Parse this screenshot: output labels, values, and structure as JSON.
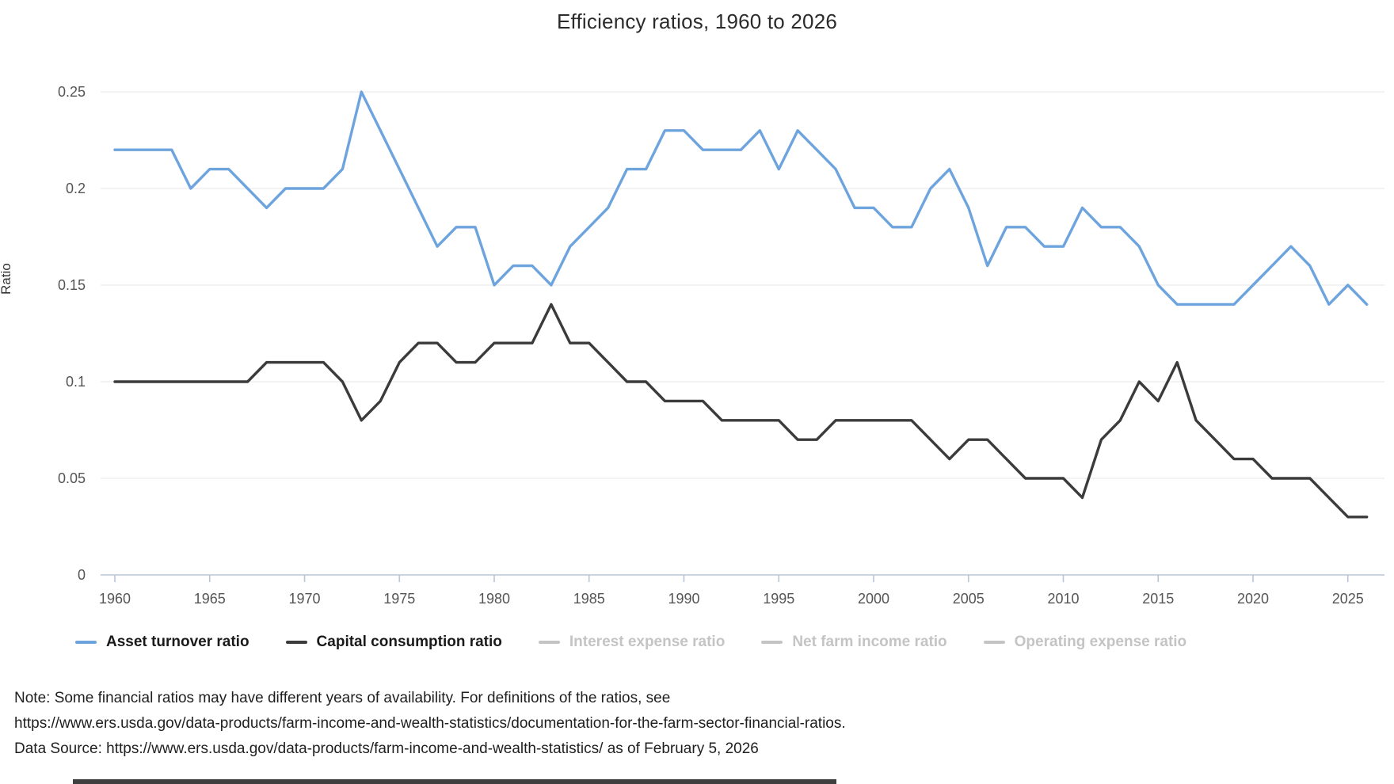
{
  "page": {
    "title": "Efficiency ratios, 1960 to 2026"
  },
  "chart_data": {
    "type": "line",
    "title": "Efficiency ratios, 1960 to 2026",
    "xlabel": "",
    "ylabel": "Ratio",
    "x_range": [
      1960,
      2026
    ],
    "x_step": 1,
    "x_ticks": [
      "1960",
      "1965",
      "1970",
      "1975",
      "1980",
      "1985",
      "1990",
      "1995",
      "2000",
      "2005",
      "2010",
      "2015",
      "2020",
      "2025"
    ],
    "y_ticks": [
      "0",
      "0.05",
      "0.1",
      "0.15",
      "0.2",
      "0.25"
    ],
    "y_tick_values": [
      0,
      0.05,
      0.1,
      0.15,
      0.2,
      0.25
    ],
    "ylim": [
      0,
      0.25
    ],
    "grid": "horizontal",
    "legend_position": "bottom",
    "series": [
      {
        "name": "Asset turnover ratio",
        "color": "#6ea4de",
        "enabled": true,
        "values": [
          0.22,
          0.22,
          0.22,
          0.22,
          0.2,
          0.21,
          0.21,
          0.2,
          0.19,
          0.2,
          0.2,
          0.2,
          0.21,
          0.25,
          0.23,
          0.21,
          0.19,
          0.17,
          0.18,
          0.18,
          0.15,
          0.16,
          0.16,
          0.15,
          0.17,
          0.18,
          0.19,
          0.21,
          0.21,
          0.23,
          0.23,
          0.22,
          0.22,
          0.22,
          0.23,
          0.21,
          0.23,
          0.22,
          0.21,
          0.19,
          0.19,
          0.18,
          0.18,
          0.2,
          0.21,
          0.19,
          0.16,
          0.18,
          0.18,
          0.17,
          0.17,
          0.19,
          0.18,
          0.18,
          0.17,
          0.15,
          0.14,
          0.14,
          0.14,
          0.14,
          0.15,
          0.16,
          0.17,
          0.16,
          0.14,
          0.15,
          0.14
        ]
      },
      {
        "name": "Capital consumption ratio",
        "color": "#3b3b3b",
        "enabled": true,
        "values": [
          0.1,
          0.1,
          0.1,
          0.1,
          0.1,
          0.1,
          0.1,
          0.1,
          0.11,
          0.11,
          0.11,
          0.11,
          0.1,
          0.08,
          0.09,
          0.11,
          0.12,
          0.12,
          0.11,
          0.11,
          0.12,
          0.12,
          0.12,
          0.14,
          0.12,
          0.12,
          0.11,
          0.1,
          0.1,
          0.09,
          0.09,
          0.09,
          0.08,
          0.08,
          0.08,
          0.08,
          0.07,
          0.07,
          0.08,
          0.08,
          0.08,
          0.08,
          0.08,
          0.07,
          0.06,
          0.07,
          0.07,
          0.06,
          0.05,
          0.05,
          0.05,
          0.04,
          0.07,
          0.08,
          0.1,
          0.09,
          0.11,
          0.08,
          0.07,
          0.06,
          0.06,
          0.05,
          0.05,
          0.05,
          0.04,
          0.03,
          0.03
        ]
      },
      {
        "name": "Interest expense ratio",
        "color": "#c4c4c4",
        "enabled": false,
        "values": []
      },
      {
        "name": "Net farm income ratio",
        "color": "#c4c4c4",
        "enabled": false,
        "values": []
      },
      {
        "name": "Operating expense ratio",
        "color": "#c4c4c4",
        "enabled": false,
        "values": []
      }
    ]
  },
  "notes": {
    "lines": [
      "Note: Some financial ratios may have different years of availability. For definitions of the ratios, see",
      "https://www.ers.usda.gov/data-products/farm-income-and-wealth-statistics/documentation-for-the-farm-sector-financial-ratios.",
      "Data Source: https://www.ers.usda.gov/data-products/farm-income-and-wealth-statistics/ as of February 5, 2026"
    ]
  },
  "colors": {
    "background": "#ffffff",
    "grid_line": "#ececec",
    "axis_line": "#b9c5da",
    "tick_text": "#555555",
    "title_text": "#2b2b2b",
    "note_text": "#1f1f1f",
    "legend_text": "#1a1a1a",
    "legend_disabled_text": "#c4c4c4",
    "series_blue": "#6ea4de",
    "series_dark": "#3b3b3b"
  }
}
